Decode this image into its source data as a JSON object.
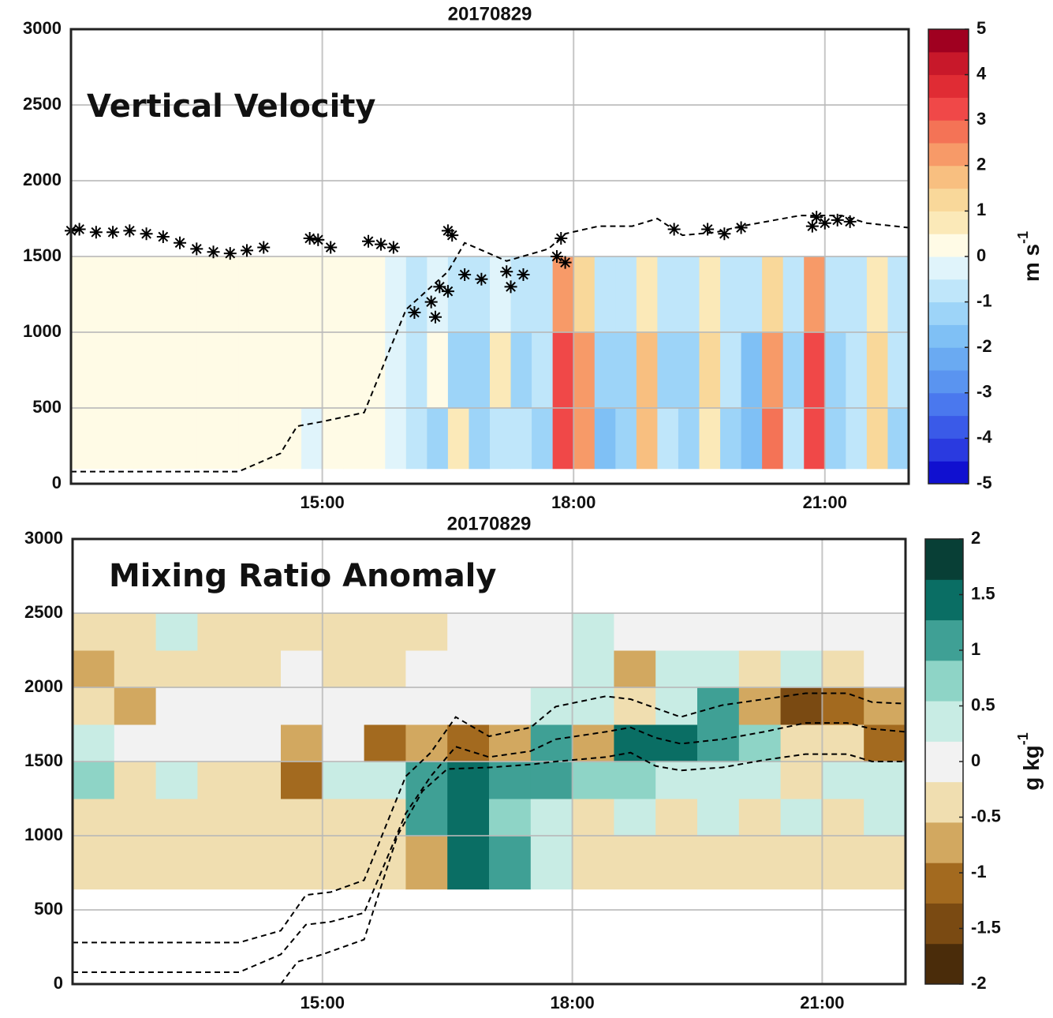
{
  "chart_data": [
    {
      "type": "heatmap",
      "title": "20170829",
      "annotation": "Vertical Velocity",
      "xlim": [
        12,
        22
      ],
      "xticks": [
        {
          "value": 15,
          "label": "15:00"
        },
        {
          "value": 18,
          "label": "18:00"
        },
        {
          "value": 21,
          "label": "21:00"
        }
      ],
      "ylim": [
        0,
        3000
      ],
      "yticks": [
        0,
        500,
        1000,
        1500,
        2000,
        2500,
        3000
      ],
      "grid": true,
      "heatmap": {
        "x_edges": [
          12,
          12.25,
          12.5,
          12.75,
          13,
          13.25,
          13.5,
          13.75,
          14,
          14.25,
          14.5,
          14.75,
          15,
          15.25,
          15.5,
          15.75,
          16,
          16.25,
          16.5,
          16.75,
          17,
          17.25,
          17.5,
          17.75,
          18,
          18.25,
          18.5,
          18.75,
          19,
          19.25,
          19.5,
          19.75,
          20,
          20.25,
          20.5,
          20.75,
          21,
          21.25,
          21.5,
          21.75,
          22
        ],
        "y_edges": [
          100,
          500,
          1000,
          1500
        ],
        "values": [
          [
            0.3,
            0.3,
            0.3,
            0.3,
            0.3,
            0.3,
            0.3,
            0.3,
            0.3,
            0.3,
            0.3,
            -0.3,
            0.3,
            0.3,
            0.3,
            -0.3,
            -0.8,
            -1.2,
            0.6,
            -1.4,
            -1.0,
            -0.8,
            -1.3,
            3.2,
            2.4,
            -1.6,
            -1.2,
            1.8,
            -1.0,
            -1.4,
            0.8,
            -1.2,
            -1.8,
            2.6,
            -0.9,
            3.4,
            -1.3,
            -1.0,
            1.4,
            -1.1
          ],
          [
            0.3,
            0.3,
            0.3,
            0.3,
            0.3,
            0.3,
            0.3,
            0.3,
            0.3,
            0.3,
            0.3,
            0.3,
            0.3,
            0.3,
            0.3,
            -0.3,
            -1.0,
            0.4,
            -1.3,
            -1.1,
            0.6,
            -1.5,
            -0.9,
            3.0,
            2.2,
            -1.4,
            -1.1,
            1.6,
            -1.2,
            -1.5,
            1.0,
            -1.0,
            -1.6,
            2.4,
            -1.1,
            3.2,
            -1.2,
            -0.8,
            1.2,
            -1.0
          ],
          [
            0.3,
            0.3,
            0.3,
            0.3,
            0.3,
            0.3,
            0.3,
            0.3,
            0.3,
            0.3,
            0.3,
            0.3,
            0.3,
            0.3,
            0.3,
            -0.3,
            -0.6,
            -0.5,
            -0.7,
            -0.6,
            -0.4,
            -0.8,
            -0.6,
            2.0,
            1.2,
            -0.9,
            -0.7,
            0.9,
            -0.8,
            -0.9,
            0.6,
            -0.8,
            -1.0,
            1.4,
            -0.6,
            2.2,
            -0.8,
            -0.6,
            0.6,
            -0.7
          ]
        ]
      },
      "colorbar": {
        "clim": [
          -5,
          5
        ],
        "ticks": [
          -5,
          -4,
          -3,
          -2,
          -1,
          0,
          1,
          2,
          3,
          4,
          5
        ],
        "label": "m s",
        "label_superscript": "-1",
        "colors": [
          "#1010d0",
          "#2a3ae0",
          "#3a5ae8",
          "#4a78ee",
          "#5a94f0",
          "#6aaaf2",
          "#7fc0f5",
          "#9dd4f8",
          "#bfe6fa",
          "#e0f4fb",
          "#fffbe6",
          "#fbe9b8",
          "#f9d89a",
          "#f8bf80",
          "#f79a68",
          "#f47356",
          "#f04848",
          "#e02c34",
          "#c8182a",
          "#a00020"
        ]
      },
      "lines": [
        {
          "color": "#000000",
          "x": [
            12,
            13.1,
            14.0,
            14.5,
            14.7,
            15.0,
            15.5,
            16.0,
            16.2,
            16.5,
            16.7,
            17.2,
            17.7,
            17.9,
            18.3,
            18.7,
            19.0,
            19.3,
            19.7,
            20.0,
            20.3,
            20.7,
            21.2,
            21.5,
            22.0
          ],
          "y": [
            80,
            80,
            80,
            200,
            380,
            410,
            470,
            1150,
            1250,
            1400,
            1590,
            1470,
            1550,
            1650,
            1700,
            1700,
            1750,
            1640,
            1660,
            1700,
            1730,
            1770,
            1770,
            1720,
            1690
          ]
        }
      ],
      "scatter": {
        "color": "#000000",
        "x": [
          12.0,
          12.1,
          12.3,
          12.5,
          12.7,
          12.9,
          13.1,
          13.3,
          13.5,
          13.7,
          13.9,
          14.1,
          14.3,
          14.85,
          14.95,
          15.1,
          15.55,
          15.7,
          15.85,
          16.1,
          16.3,
          16.35,
          16.4,
          16.5,
          16.5,
          16.55,
          16.7,
          16.9,
          17.2,
          17.25,
          17.4,
          17.8,
          17.85,
          17.9,
          19.2,
          19.6,
          19.8,
          20.0,
          20.85,
          20.9,
          21.0,
          21.15,
          21.3
        ],
        "y": [
          1670,
          1680,
          1660,
          1660,
          1670,
          1650,
          1630,
          1590,
          1550,
          1530,
          1520,
          1540,
          1560,
          1620,
          1610,
          1560,
          1600,
          1580,
          1560,
          1130,
          1200,
          1100,
          1300,
          1270,
          1670,
          1640,
          1380,
          1350,
          1400,
          1300,
          1380,
          1500,
          1620,
          1460,
          1680,
          1680,
          1650,
          1690,
          1700,
          1760,
          1720,
          1740,
          1730
        ]
      }
    },
    {
      "type": "heatmap",
      "title": "20170829",
      "annotation": "Mixing Ratio Anomaly",
      "xlim": [
        12,
        22
      ],
      "xticks": [
        {
          "value": 15,
          "label": "15:00"
        },
        {
          "value": 18,
          "label": "18:00"
        },
        {
          "value": 21,
          "label": "21:00"
        }
      ],
      "ylim": [
        0,
        3000
      ],
      "yticks": [
        0,
        500,
        1000,
        1500,
        2000,
        2500,
        3000
      ],
      "grid": true,
      "heatmap": {
        "x_edges": [
          12,
          12.5,
          13,
          13.5,
          14,
          14.5,
          15,
          15.5,
          16,
          16.5,
          17,
          17.5,
          18,
          18.5,
          19,
          19.5,
          20,
          20.5,
          21,
          21.5,
          22
        ],
        "y_edges": [
          640,
          1000,
          1250,
          1500,
          1750,
          2000,
          2250,
          2500
        ],
        "values": [
          [
            -0.3,
            -0.3,
            -0.4,
            -0.3,
            -0.2,
            -0.3,
            -0.3,
            -0.3,
            -0.6,
            1.4,
            1.0,
            0.4,
            -0.4,
            -0.3,
            -0.4,
            -0.3,
            -0.4,
            -0.3,
            -0.4,
            -0.3
          ],
          [
            -0.2,
            -0.4,
            -0.3,
            -0.2,
            -0.3,
            -0.2,
            -0.3,
            -0.3,
            1.2,
            1.5,
            0.6,
            0.4,
            -0.4,
            0.3,
            -0.4,
            0.3,
            -0.3,
            0.2,
            -0.4,
            0.2
          ],
          [
            0.8,
            -0.2,
            0.3,
            -0.2,
            -0.3,
            -1.0,
            0.5,
            0.4,
            1.0,
            1.4,
            1.1,
            1.0,
            0.6,
            0.9,
            0.5,
            0.4,
            0.3,
            -0.3,
            0.3,
            0.2
          ],
          [
            0.3,
            0.0,
            0.0,
            0.0,
            0.0,
            -0.6,
            0.0,
            -1.2,
            -0.8,
            -1.0,
            -0.6,
            1.2,
            -0.9,
            1.3,
            1.4,
            1.2,
            0.6,
            -0.5,
            -0.5,
            -1.0
          ],
          [
            -0.4,
            -0.6,
            0.1,
            0.1,
            0.0,
            0.0,
            0.0,
            0.0,
            0.0,
            0.0,
            0.0,
            0.3,
            0.4,
            -0.4,
            0.4,
            1.0,
            -0.8,
            -1.3,
            -1.2,
            -0.9
          ],
          [
            -0.7,
            -0.4,
            -0.3,
            -0.3,
            -0.3,
            0.0,
            -0.3,
            -0.2,
            0.0,
            0.0,
            0.0,
            0.0,
            0.5,
            -0.7,
            0.3,
            0.4,
            -0.3,
            0.2,
            -0.4,
            0.0
          ],
          [
            -0.3,
            -0.3,
            0.3,
            -0.3,
            -0.4,
            -0.4,
            -0.4,
            -0.4,
            -0.4,
            0.0,
            0.0,
            0.0,
            0.3,
            0.0,
            0.0,
            0.0,
            0.0,
            0.0,
            0.0,
            0.0
          ]
        ]
      },
      "colorbar": {
        "clim": [
          -2,
          2
        ],
        "ticks": [
          -2,
          -1.5,
          -1,
          -0.5,
          0,
          0.5,
          1,
          1.5,
          2
        ],
        "label": "g kg",
        "label_superscript": "-1",
        "colors": [
          "#4a2c0a",
          "#7a4a12",
          "#a36a1f",
          "#d2a860",
          "#f0deb0",
          "#f2f2f2",
          "#c8ece4",
          "#8ed4c6",
          "#3fa095",
          "#0a6e64",
          "#083f36"
        ]
      },
      "lines": [
        {
          "color": "#000000",
          "x": [
            12,
            14.0,
            14.5,
            14.8,
            15.1,
            15.5,
            16.0,
            16.3,
            16.6,
            17.0,
            17.5,
            17.8,
            18.4,
            18.7,
            19.0,
            19.3,
            19.8,
            20.3,
            20.8,
            21.3,
            21.6,
            22.0
          ],
          "y": [
            280,
            280,
            360,
            600,
            620,
            700,
            1400,
            1560,
            1800,
            1670,
            1730,
            1870,
            1940,
            1920,
            1860,
            1800,
            1880,
            1920,
            1960,
            1960,
            1900,
            1890
          ]
        },
        {
          "color": "#000000",
          "x": [
            12,
            14.0,
            14.5,
            14.8,
            15.1,
            15.5,
            16.0,
            16.3,
            16.6,
            17.0,
            17.5,
            17.8,
            18.4,
            18.7,
            19.0,
            19.3,
            19.8,
            20.3,
            20.8,
            21.3,
            21.6,
            22.0
          ],
          "y": [
            80,
            80,
            200,
            400,
            420,
            480,
            1150,
            1400,
            1600,
            1530,
            1570,
            1650,
            1700,
            1730,
            1660,
            1620,
            1650,
            1700,
            1760,
            1760,
            1720,
            1700
          ]
        },
        {
          "color": "#000000",
          "x": [
            14.5,
            14.7,
            15.0,
            15.5,
            15.9,
            16.2,
            16.5,
            17.0,
            17.5,
            17.8,
            18.4,
            18.7,
            19.0,
            19.3,
            19.8,
            20.3,
            20.8,
            21.3,
            21.6,
            22.0
          ],
          "y": [
            0,
            150,
            200,
            300,
            1000,
            1300,
            1450,
            1460,
            1480,
            1500,
            1530,
            1560,
            1470,
            1440,
            1460,
            1510,
            1550,
            1550,
            1500,
            1500
          ]
        }
      ]
    }
  ]
}
